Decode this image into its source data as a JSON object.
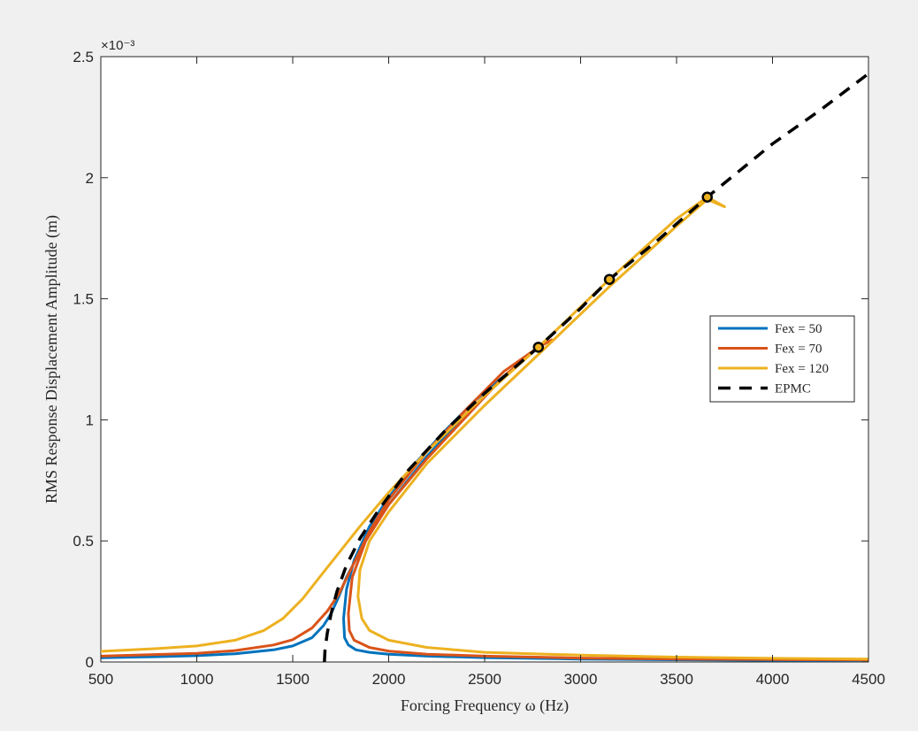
{
  "chart_data": {
    "type": "line",
    "xlabel": "Forcing Frequency ω (Hz)",
    "ylabel": "RMS Response Displacement Amplitude (m)",
    "y_exponent_label": "×10⁻³",
    "xlim": [
      500,
      4500
    ],
    "ylim": [
      0,
      2.5
    ],
    "y_scale_note": "values in units of 1e-3 m",
    "grid": false,
    "legend_position": "right",
    "x_ticks": [
      "500",
      "1000",
      "1500",
      "2000",
      "2500",
      "3000",
      "3500",
      "4000",
      "4500"
    ],
    "y_ticks": [
      "0",
      "0.5",
      "1",
      "1.5",
      "2",
      "2.5"
    ],
    "series": [
      {
        "name": "Fex = 50",
        "color": "#0072BD",
        "style": "solid",
        "x": [
          500,
          800,
          1000,
          1200,
          1400,
          1500,
          1600,
          1660,
          1700,
          1740,
          1780,
          1900,
          2000,
          2200,
          2400,
          2500,
          2600,
          2650,
          2600,
          2450,
          2300,
          2150,
          2000,
          1900,
          1820,
          1780,
          1765,
          1770,
          1790,
          1830,
          1900,
          2000,
          2200,
          2500,
          3000,
          3500,
          4000,
          4500
        ],
        "y": [
          0.017,
          0.022,
          0.026,
          0.034,
          0.05,
          0.066,
          0.1,
          0.15,
          0.2,
          0.27,
          0.35,
          0.53,
          0.65,
          0.85,
          1.02,
          1.1,
          1.18,
          1.21,
          1.18,
          1.08,
          0.96,
          0.83,
          0.68,
          0.56,
          0.42,
          0.3,
          0.18,
          0.1,
          0.07,
          0.05,
          0.04,
          0.032,
          0.024,
          0.018,
          0.012,
          0.009,
          0.007,
          0.006
        ]
      },
      {
        "name": "Fex = 70",
        "color": "#D95319",
        "style": "solid",
        "x": [
          500,
          800,
          1000,
          1200,
          1400,
          1500,
          1600,
          1680,
          1740,
          1900,
          2000,
          2200,
          2400,
          2600,
          2780,
          2850,
          2780,
          2600,
          2400,
          2200,
          2000,
          1880,
          1810,
          1790,
          1795,
          1820,
          1900,
          2000,
          2200,
          2500,
          3000,
          3500,
          4000,
          4500
        ],
        "y": [
          0.024,
          0.031,
          0.036,
          0.047,
          0.07,
          0.092,
          0.14,
          0.21,
          0.28,
          0.54,
          0.67,
          0.87,
          1.04,
          1.2,
          1.3,
          1.33,
          1.3,
          1.18,
          1.01,
          0.84,
          0.65,
          0.5,
          0.35,
          0.2,
          0.13,
          0.09,
          0.06,
          0.045,
          0.032,
          0.024,
          0.016,
          0.012,
          0.01,
          0.008
        ]
      },
      {
        "name": "Fex = 120",
        "color": "#EDB120",
        "style": "solid",
        "x": [
          500,
          800,
          1000,
          1200,
          1350,
          1450,
          1550,
          1650,
          1750,
          1850,
          2000,
          2200,
          2500,
          2780,
          3150,
          3500,
          3660,
          3750,
          3660,
          3500,
          3150,
          2780,
          2500,
          2200,
          2000,
          1900,
          1850,
          1840,
          1860,
          1900,
          2000,
          2200,
          2500,
          3000,
          3500,
          4000,
          4500
        ],
        "y": [
          0.044,
          0.056,
          0.066,
          0.09,
          0.13,
          0.18,
          0.26,
          0.36,
          0.46,
          0.56,
          0.7,
          0.87,
          1.1,
          1.3,
          1.58,
          1.83,
          1.92,
          1.88,
          1.91,
          1.8,
          1.55,
          1.27,
          1.06,
          0.82,
          0.62,
          0.5,
          0.38,
          0.27,
          0.18,
          0.13,
          0.09,
          0.06,
          0.04,
          0.028,
          0.02,
          0.015,
          0.012
        ]
      },
      {
        "name": "EPMC",
        "color": "#000000",
        "style": "dashed",
        "x": [
          1665,
          1668,
          1680,
          1700,
          1730,
          1780,
          1850,
          1950,
          2100,
          2300,
          2500,
          2780,
          3000,
          3150,
          3400,
          3660,
          4000,
          4250,
          4500
        ],
        "y": [
          0.0,
          0.05,
          0.12,
          0.2,
          0.29,
          0.4,
          0.51,
          0.63,
          0.79,
          0.96,
          1.11,
          1.3,
          1.46,
          1.58,
          1.74,
          1.92,
          2.14,
          2.28,
          2.43
        ]
      }
    ],
    "markers": [
      {
        "x": 2780,
        "y": 1.3
      },
      {
        "x": 3150,
        "y": 1.58
      },
      {
        "x": 3660,
        "y": 1.92
      }
    ]
  }
}
